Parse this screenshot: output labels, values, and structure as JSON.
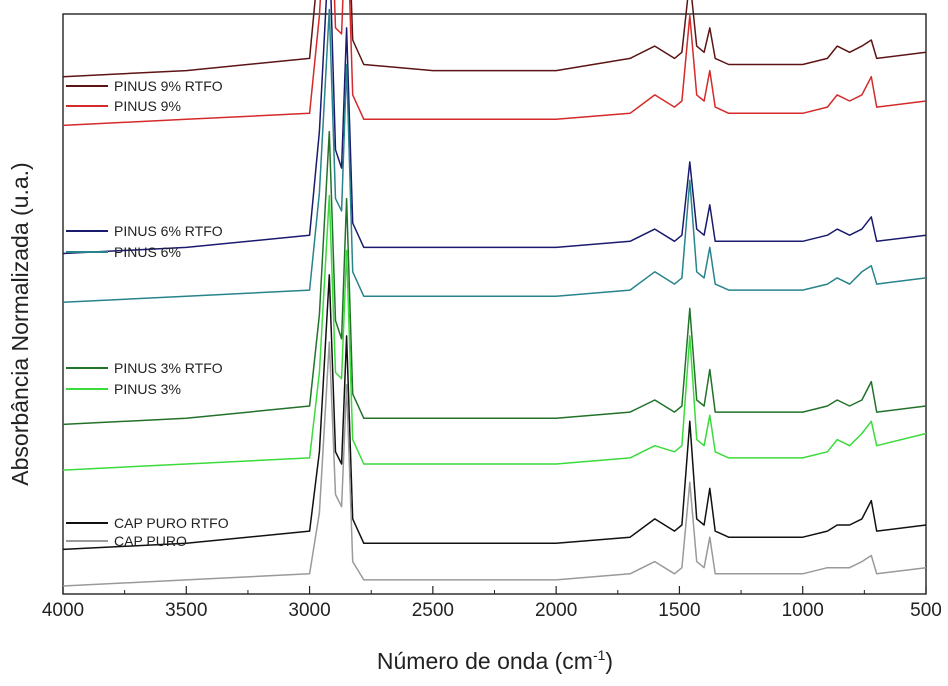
{
  "chart_data": {
    "type": "line",
    "title": "",
    "xlabel": "Número de onda (cm",
    "xlabel_sup": "-1",
    "xlabel_suffix": ")",
    "ylabel": "Absorbância Normalizada (u.a.)",
    "xlim": [
      4000,
      500
    ],
    "x_reversed": true,
    "x_ticks": [
      4000,
      3500,
      3000,
      2500,
      2000,
      1500,
      1000,
      500
    ],
    "y_ticks_shown": false,
    "grid": false,
    "legend_placement": "grouped beside each curve pair, left",
    "x": [
      4000,
      3500,
      3000,
      2960,
      2920,
      2895,
      2870,
      2850,
      2825,
      2780,
      2500,
      2000,
      1700,
      1600,
      1520,
      1490,
      1458,
      1430,
      1400,
      1377,
      1355,
      1300,
      1000,
      900,
      860,
      810,
      760,
      722,
      700,
      500
    ],
    "series": [
      {
        "name": "PINUS 9% RTFO",
        "color": "#5c1414",
        "offset": 0.835,
        "values": [
          0.0,
          0.01,
          0.03,
          0.2,
          0.52,
          0.18,
          0.15,
          0.35,
          0.06,
          0.02,
          0.01,
          0.01,
          0.03,
          0.05,
          0.03,
          0.04,
          0.16,
          0.05,
          0.04,
          0.08,
          0.03,
          0.02,
          0.02,
          0.03,
          0.05,
          0.04,
          0.05,
          0.06,
          0.03,
          0.04
        ]
      },
      {
        "name": "PINUS 9%",
        "color": "#d42a2a",
        "offset": 0.755,
        "values": [
          0.0,
          0.01,
          0.02,
          0.18,
          0.46,
          0.16,
          0.15,
          0.37,
          0.05,
          0.01,
          0.01,
          0.01,
          0.02,
          0.05,
          0.03,
          0.04,
          0.18,
          0.05,
          0.04,
          0.09,
          0.03,
          0.02,
          0.02,
          0.03,
          0.05,
          0.04,
          0.05,
          0.08,
          0.03,
          0.04
        ]
      },
      {
        "name": "PINUS 6% RTFO",
        "color": "#1a1a6e",
        "offset": 0.545,
        "values": [
          0.0,
          0.01,
          0.03,
          0.2,
          0.51,
          0.17,
          0.14,
          0.37,
          0.05,
          0.01,
          0.01,
          0.01,
          0.02,
          0.04,
          0.02,
          0.03,
          0.15,
          0.04,
          0.03,
          0.08,
          0.02,
          0.02,
          0.02,
          0.03,
          0.04,
          0.03,
          0.04,
          0.06,
          0.02,
          0.03
        ]
      },
      {
        "name": "PINUS 6%",
        "color": "#27838c",
        "offset": 0.465,
        "values": [
          0.0,
          0.01,
          0.02,
          0.18,
          0.48,
          0.17,
          0.15,
          0.39,
          0.05,
          0.01,
          0.01,
          0.01,
          0.02,
          0.05,
          0.03,
          0.04,
          0.2,
          0.05,
          0.04,
          0.09,
          0.03,
          0.02,
          0.02,
          0.03,
          0.04,
          0.03,
          0.05,
          0.06,
          0.03,
          0.04
        ]
      },
      {
        "name": "PINUS 3% RTFO",
        "color": "#22722a",
        "offset": 0.265,
        "values": [
          0.0,
          0.01,
          0.03,
          0.18,
          0.48,
          0.17,
          0.14,
          0.37,
          0.05,
          0.01,
          0.01,
          0.01,
          0.02,
          0.04,
          0.02,
          0.03,
          0.19,
          0.04,
          0.03,
          0.09,
          0.02,
          0.02,
          0.02,
          0.03,
          0.04,
          0.03,
          0.04,
          0.07,
          0.02,
          0.03
        ]
      },
      {
        "name": "PINUS 3%",
        "color": "#3bdb3b",
        "offset": 0.19,
        "values": [
          0.0,
          0.01,
          0.02,
          0.16,
          0.45,
          0.16,
          0.15,
          0.36,
          0.05,
          0.01,
          0.01,
          0.01,
          0.02,
          0.04,
          0.03,
          0.04,
          0.22,
          0.05,
          0.04,
          0.09,
          0.03,
          0.02,
          0.02,
          0.03,
          0.05,
          0.04,
          0.06,
          0.08,
          0.04,
          0.06
        ]
      },
      {
        "name": "CAP PURO RTFO",
        "color": "#111111",
        "offset": 0.06,
        "values": [
          0.0,
          0.01,
          0.03,
          0.16,
          0.45,
          0.16,
          0.14,
          0.35,
          0.05,
          0.01,
          0.01,
          0.01,
          0.02,
          0.05,
          0.03,
          0.04,
          0.21,
          0.05,
          0.04,
          0.1,
          0.03,
          0.02,
          0.02,
          0.03,
          0.04,
          0.04,
          0.05,
          0.08,
          0.03,
          0.04
        ]
      },
      {
        "name": "CAP PURO",
        "color": "#9a9a9a",
        "offset": 0.0,
        "values": [
          0.0,
          0.01,
          0.02,
          0.12,
          0.4,
          0.15,
          0.13,
          0.33,
          0.04,
          0.01,
          0.01,
          0.01,
          0.02,
          0.04,
          0.02,
          0.03,
          0.17,
          0.04,
          0.03,
          0.08,
          0.02,
          0.02,
          0.02,
          0.03,
          0.03,
          0.03,
          0.04,
          0.05,
          0.02,
          0.03
        ]
      }
    ]
  }
}
